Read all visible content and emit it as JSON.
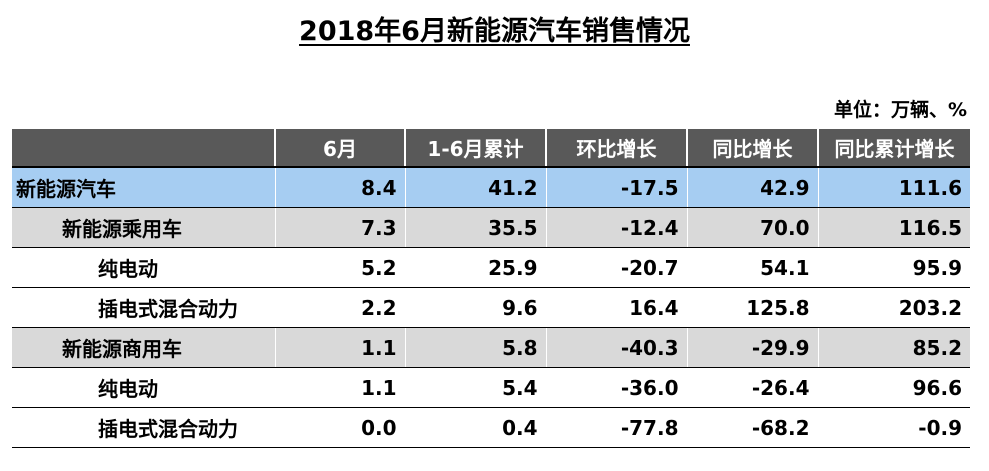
{
  "title": "2018年6月新能源汽车销售情况",
  "unit": "单位：万辆、%",
  "headers": [
    "",
    "6月",
    "1-6月累计",
    "环比增长",
    "同比增长",
    "同比累计增长"
  ],
  "rows": [
    {
      "name": "新能源汽车",
      "values": [
        "8.4",
        "41.2",
        "-17.5",
        "42.9",
        "111.6"
      ]
    },
    {
      "name": "新能源乘用车",
      "values": [
        "7.3",
        "35.5",
        "-12.4",
        "70.0",
        "116.5"
      ]
    },
    {
      "name": "纯电动",
      "values": [
        "5.2",
        "25.9",
        "-20.7",
        "54.1",
        "95.9"
      ]
    },
    {
      "name": "插电式混合动力",
      "values": [
        "2.2",
        "9.6",
        "16.4",
        "125.8",
        "203.2"
      ]
    },
    {
      "name": "新能源商用车",
      "values": [
        "1.1",
        "5.8",
        "-40.3",
        "-29.9",
        "85.2"
      ]
    },
    {
      "name": "纯电动",
      "values": [
        "1.1",
        "5.4",
        "-36.0",
        "-26.4",
        "96.6"
      ]
    },
    {
      "name": "插电式混合动力",
      "values": [
        "0.0",
        "0.4",
        "-77.8",
        "-68.2",
        "-0.9"
      ]
    }
  ]
}
